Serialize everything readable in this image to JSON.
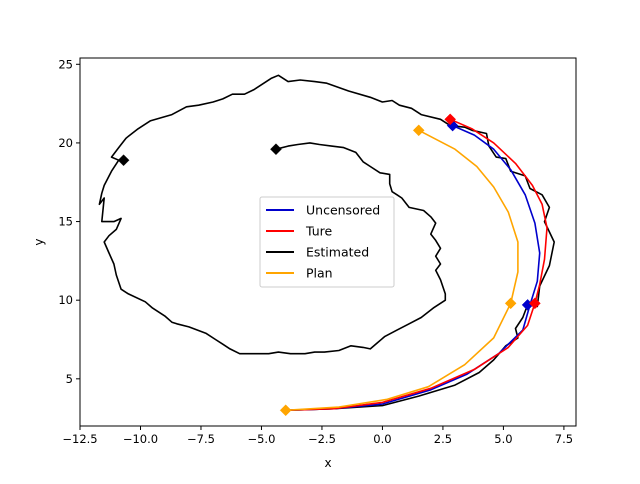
{
  "chart_data": {
    "type": "line",
    "title": "",
    "xlabel": "x",
    "ylabel": "y",
    "xlim": [
      -12.5,
      8.0
    ],
    "ylim": [
      2.0,
      25.4
    ],
    "xticks": [
      -12.5,
      -10.0,
      -7.5,
      -5.0,
      -2.5,
      0.0,
      2.5,
      5.0,
      7.5
    ],
    "xtick_labels": [
      "−12.5",
      "−10.0",
      "−7.5",
      "−5.0",
      "−2.5",
      "0.0",
      "2.5",
      "5.0",
      "7.5"
    ],
    "yticks": [
      5,
      10,
      15,
      20,
      25
    ],
    "ytick_labels": [
      "5",
      "10",
      "15",
      "20",
      "25"
    ],
    "grid": false,
    "legend_position": "center",
    "series": [
      {
        "name": "Uncensored",
        "color": "#0000cc",
        "points": [
          [
            -4.0,
            3.0
          ],
          [
            -2.0,
            3.1
          ],
          [
            0.0,
            3.4
          ],
          [
            2.0,
            4.3
          ],
          [
            3.5,
            5.3
          ],
          [
            4.8,
            6.6
          ],
          [
            5.8,
            8.1
          ],
          [
            6.1,
            9.7
          ],
          [
            6.4,
            11.2
          ],
          [
            6.5,
            13.0
          ],
          [
            6.3,
            14.9
          ],
          [
            5.9,
            16.7
          ],
          [
            5.3,
            18.3
          ],
          [
            4.6,
            19.6
          ],
          [
            3.8,
            20.5
          ],
          [
            2.9,
            21.1
          ]
        ],
        "markers": [
          [
            2.9,
            21.1
          ],
          [
            6.0,
            9.7
          ]
        ]
      },
      {
        "name": "Ture",
        "color": "#ff0000",
        "points": [
          [
            -4.0,
            3.0
          ],
          [
            -2.0,
            3.1
          ],
          [
            0.0,
            3.5
          ],
          [
            2.0,
            4.4
          ],
          [
            3.8,
            5.6
          ],
          [
            5.2,
            7.0
          ],
          [
            6.0,
            8.4
          ],
          [
            6.3,
            9.8
          ],
          [
            6.5,
            11.0
          ],
          [
            6.7,
            12.6
          ],
          [
            6.8,
            14.6
          ],
          [
            6.6,
            16.1
          ],
          [
            6.2,
            17.3
          ],
          [
            5.5,
            18.7
          ],
          [
            4.6,
            20.0
          ],
          [
            3.7,
            20.9
          ],
          [
            2.8,
            21.5
          ]
        ],
        "markers": [
          [
            2.8,
            21.5
          ],
          [
            6.3,
            9.8
          ]
        ]
      },
      {
        "name": "Estimated",
        "color": "#000000",
        "points": [
          [
            -4.0,
            3.0
          ],
          [
            -2.0,
            3.1
          ],
          [
            0.0,
            3.3
          ],
          [
            1.5,
            3.9
          ],
          [
            3.0,
            4.6
          ],
          [
            4.0,
            5.4
          ],
          [
            4.6,
            6.2
          ],
          [
            5.1,
            7.1
          ],
          [
            5.6,
            7.6
          ],
          [
            5.5,
            8.2
          ],
          [
            5.8,
            8.9
          ],
          [
            6.0,
            9.7
          ],
          [
            6.4,
            9.6
          ],
          [
            6.5,
            10.9
          ],
          [
            6.9,
            12.2
          ],
          [
            7.1,
            13.7
          ],
          [
            6.7,
            15.0
          ],
          [
            6.9,
            15.9
          ],
          [
            6.6,
            16.7
          ],
          [
            6.1,
            17.1
          ],
          [
            5.9,
            17.9
          ],
          [
            5.3,
            18.2
          ],
          [
            5.1,
            19.0
          ],
          [
            4.7,
            19.1
          ],
          [
            4.4,
            19.8
          ],
          [
            4.3,
            20.6
          ],
          [
            3.7,
            20.8
          ],
          [
            3.4,
            21.0
          ],
          [
            2.8,
            21.1
          ],
          [
            2.4,
            21.5
          ],
          [
            1.6,
            21.8
          ],
          [
            1.2,
            22.2
          ],
          [
            0.7,
            22.4
          ],
          [
            0.4,
            22.7
          ],
          [
            0.0,
            22.6
          ],
          [
            -0.5,
            22.9
          ],
          [
            -1.4,
            23.3
          ],
          [
            -2.3,
            23.8
          ],
          [
            -2.8,
            23.9
          ],
          [
            -3.4,
            24.0
          ],
          [
            -3.9,
            23.9
          ],
          [
            -4.3,
            24.3
          ],
          [
            -4.6,
            24.1
          ],
          [
            -5.0,
            23.7
          ],
          [
            -5.3,
            23.4
          ],
          [
            -5.7,
            23.1
          ],
          [
            -6.2,
            23.1
          ],
          [
            -6.6,
            22.8
          ],
          [
            -7.0,
            22.6
          ],
          [
            -7.6,
            22.4
          ],
          [
            -8.1,
            22.3
          ],
          [
            -8.7,
            21.8
          ],
          [
            -9.6,
            21.4
          ],
          [
            -10.1,
            20.9
          ],
          [
            -10.6,
            20.3
          ],
          [
            -10.9,
            19.7
          ],
          [
            -11.2,
            19.1
          ],
          [
            -10.9,
            18.9
          ],
          [
            -11.2,
            18.2
          ],
          [
            -11.5,
            17.3
          ],
          [
            -11.6,
            16.8
          ],
          [
            -11.7,
            16.1
          ],
          [
            -11.5,
            16.5
          ],
          [
            -11.6,
            15.0
          ],
          [
            -11.1,
            15.0
          ],
          [
            -10.8,
            15.2
          ],
          [
            -11.0,
            14.5
          ],
          [
            -11.3,
            14.1
          ],
          [
            -11.5,
            13.7
          ],
          [
            -11.3,
            13.0
          ],
          [
            -11.1,
            12.3
          ],
          [
            -11.0,
            11.6
          ],
          [
            -10.8,
            10.7
          ],
          [
            -10.5,
            10.4
          ],
          [
            -9.8,
            9.9
          ],
          [
            -9.5,
            9.5
          ],
          [
            -9.0,
            9.0
          ],
          [
            -8.7,
            8.6
          ],
          [
            -8.5,
            8.5
          ],
          [
            -8.0,
            8.3
          ],
          [
            -7.3,
            7.9
          ],
          [
            -6.9,
            7.5
          ],
          [
            -6.6,
            7.2
          ],
          [
            -6.3,
            6.9
          ],
          [
            -5.9,
            6.6
          ],
          [
            -5.3,
            6.6
          ],
          [
            -4.7,
            6.6
          ],
          [
            -4.3,
            6.7
          ],
          [
            -3.8,
            6.6
          ],
          [
            -3.2,
            6.6
          ],
          [
            -2.8,
            6.7
          ],
          [
            -2.4,
            6.7
          ],
          [
            -1.8,
            6.8
          ],
          [
            -1.3,
            7.1
          ],
          [
            -0.8,
            7.0
          ],
          [
            -0.5,
            6.9
          ],
          [
            -0.2,
            7.3
          ],
          [
            0.1,
            7.7
          ],
          [
            0.6,
            8.1
          ],
          [
            1.1,
            8.5
          ],
          [
            1.6,
            8.9
          ],
          [
            2.1,
            9.5
          ],
          [
            2.6,
            10.0
          ],
          [
            2.6,
            10.4
          ],
          [
            2.4,
            11.3
          ],
          [
            2.2,
            11.9
          ],
          [
            2.4,
            12.3
          ],
          [
            2.2,
            12.8
          ],
          [
            2.4,
            13.3
          ],
          [
            2.2,
            13.8
          ],
          [
            2.0,
            14.2
          ],
          [
            2.2,
            14.9
          ],
          [
            2.0,
            15.3
          ],
          [
            1.7,
            15.7
          ],
          [
            1.1,
            15.9
          ],
          [
            0.8,
            16.5
          ],
          [
            0.6,
            16.7
          ],
          [
            0.4,
            16.9
          ],
          [
            0.3,
            17.4
          ],
          [
            0.3,
            18.0
          ],
          [
            -0.1,
            18.1
          ],
          [
            -0.5,
            18.5
          ],
          [
            -0.8,
            18.8
          ],
          [
            -1.1,
            19.4
          ],
          [
            -1.6,
            19.7
          ],
          [
            -2.1,
            19.8
          ],
          [
            -2.6,
            19.9
          ],
          [
            -3.0,
            20.0
          ],
          [
            -3.5,
            19.9
          ],
          [
            -3.9,
            19.8
          ],
          [
            -4.4,
            19.6
          ]
        ],
        "markers": [
          [
            -4.4,
            19.6
          ],
          [
            -10.7,
            18.9
          ]
        ]
      },
      {
        "name": "Plan",
        "color": "#ffa500",
        "points": [
          [
            -4.0,
            3.0
          ],
          [
            -1.8,
            3.2
          ],
          [
            0.2,
            3.7
          ],
          [
            1.9,
            4.5
          ],
          [
            3.4,
            5.9
          ],
          [
            4.6,
            7.6
          ],
          [
            5.3,
            9.8
          ],
          [
            5.6,
            11.8
          ],
          [
            5.6,
            13.7
          ],
          [
            5.2,
            15.6
          ],
          [
            4.6,
            17.2
          ],
          [
            3.9,
            18.5
          ],
          [
            3.0,
            19.6
          ],
          [
            1.5,
            20.8
          ]
        ],
        "markers": [
          [
            1.5,
            20.8
          ],
          [
            5.3,
            9.8
          ],
          [
            -4.0,
            3.0
          ]
        ]
      }
    ]
  }
}
